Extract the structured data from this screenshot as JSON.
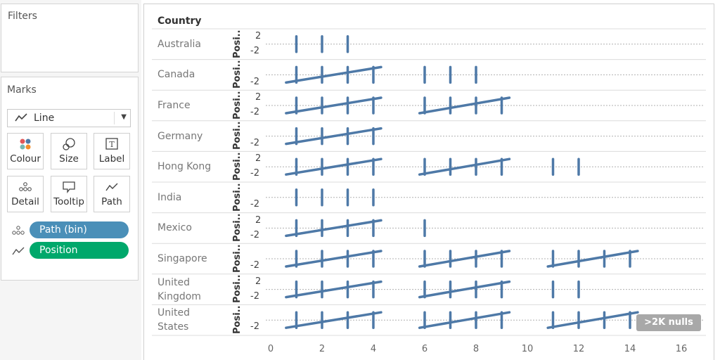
{
  "filters": {
    "title": "Filters"
  },
  "marks": {
    "title": "Marks",
    "mark_type": "Line",
    "buttons": {
      "colour": "Colour",
      "size": "Size",
      "label": "Label",
      "detail": "Detail",
      "tooltip": "Tooltip",
      "path": "Path"
    },
    "pills": [
      {
        "label": "Path (bin)",
        "color": "#4a8fb8",
        "icon": "detail-icon"
      },
      {
        "label": "Position",
        "color": "#00a86b",
        "icon": "path-icon"
      }
    ]
  },
  "view": {
    "row_header": "Country",
    "axis_title": "Posi..",
    "null_badge": ">2K nulls",
    "mark_color": "#4e79a7",
    "x_ticks": [
      "0",
      "2",
      "4",
      "6",
      "8",
      "10",
      "12",
      "14",
      "16"
    ]
  },
  "chart_data": {
    "type": "line",
    "xlim": [
      0,
      16.6
    ],
    "ylim": [
      -3,
      3
    ],
    "x_ticks": [
      0,
      2,
      4,
      6,
      8,
      10,
      12,
      14,
      16
    ],
    "rows": [
      {
        "country": [
          "Australia"
        ],
        "y_ticks": [
          "2",
          "-2"
        ],
        "ticks": [
          1,
          2,
          3
        ],
        "lines": []
      },
      {
        "country": [
          "Canada"
        ],
        "y_ticks": [
          "-2"
        ],
        "ticks": [
          1,
          2,
          3,
          4,
          6,
          7,
          8
        ],
        "lines": [
          [
            0.6,
            4.3
          ]
        ]
      },
      {
        "country": [
          "France"
        ],
        "y_ticks": [
          "2",
          "-2"
        ],
        "ticks": [
          1,
          2,
          3,
          4,
          6,
          7,
          8,
          9
        ],
        "lines": [
          [
            0.6,
            4.3
          ],
          [
            5.8,
            9.3
          ]
        ]
      },
      {
        "country": [
          "Germany"
        ],
        "y_ticks": [
          "-2"
        ],
        "ticks": [
          1,
          2,
          3,
          4
        ],
        "lines": [
          [
            0.6,
            4.3
          ]
        ]
      },
      {
        "country": [
          "Hong Kong"
        ],
        "y_ticks": [
          "2",
          "-2"
        ],
        "ticks": [
          1,
          2,
          3,
          4,
          6,
          7,
          8,
          9,
          11,
          12
        ],
        "lines": [
          [
            0.6,
            4.3
          ],
          [
            5.8,
            9.3
          ]
        ]
      },
      {
        "country": [
          "India"
        ],
        "y_ticks": [
          "-2"
        ],
        "ticks": [
          1,
          2,
          3,
          4
        ],
        "lines": []
      },
      {
        "country": [
          "Mexico"
        ],
        "y_ticks": [
          "2",
          "-2"
        ],
        "ticks": [
          1,
          2,
          3,
          4,
          6
        ],
        "lines": [
          [
            0.6,
            4.3
          ]
        ]
      },
      {
        "country": [
          "Singapore"
        ],
        "y_ticks": [
          "-2"
        ],
        "ticks": [
          1,
          2,
          3,
          4,
          6,
          7,
          8,
          9,
          11,
          12,
          13,
          14
        ],
        "lines": [
          [
            0.6,
            4.3
          ],
          [
            5.8,
            9.3
          ],
          [
            10.8,
            14.3
          ]
        ]
      },
      {
        "country": [
          "United",
          "Kingdom"
        ],
        "y_ticks": [
          "2",
          "-2"
        ],
        "ticks": [
          1,
          2,
          3,
          4,
          6,
          7,
          8,
          9,
          11,
          12
        ],
        "lines": [
          [
            0.6,
            4.3
          ],
          [
            5.8,
            9.3
          ]
        ]
      },
      {
        "country": [
          "United",
          "States"
        ],
        "y_ticks": [
          "-2"
        ],
        "ticks": [
          1,
          2,
          3,
          4,
          6,
          7,
          8,
          9,
          11,
          12,
          13,
          14
        ],
        "lines": [
          [
            0.6,
            4.3
          ],
          [
            5.8,
            9.3
          ],
          [
            10.8,
            14.3
          ]
        ]
      }
    ]
  }
}
